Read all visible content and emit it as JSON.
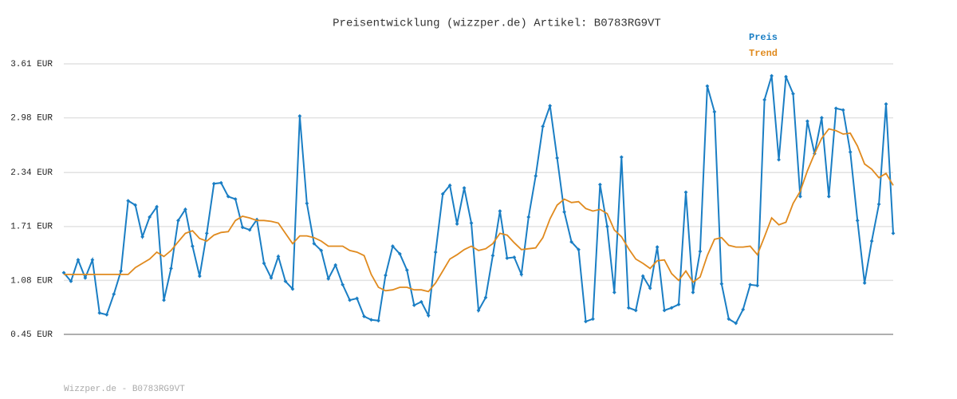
{
  "chart_data": {
    "type": "line",
    "title": "Preisentwicklung (wizzper.de) Artikel: B0783RG9VT",
    "footer": "Wizzper.de - B0783RG9VT",
    "ylim": [
      0.45,
      3.61
    ],
    "yticks": [
      {
        "value": 0.45,
        "label": "0.45 EUR"
      },
      {
        "value": 1.08,
        "label": "1.08 EUR"
      },
      {
        "value": 1.71,
        "label": "1.71 EUR"
      },
      {
        "value": 2.34,
        "label": "2.34 EUR"
      },
      {
        "value": 2.98,
        "label": "2.98 EUR"
      },
      {
        "value": 3.61,
        "label": "3.61 EUR"
      }
    ],
    "grid": true,
    "legend": "top-right",
    "series": [
      {
        "name": "Preis",
        "color": "#1a7ec4",
        "markers": true,
        "values": [
          1.17,
          1.07,
          1.32,
          1.11,
          1.32,
          0.7,
          0.68,
          0.92,
          1.19,
          2.01,
          1.96,
          1.59,
          1.82,
          1.94,
          0.85,
          1.22,
          1.78,
          1.91,
          1.48,
          1.13,
          1.63,
          2.21,
          2.22,
          2.06,
          2.03,
          1.7,
          1.67,
          1.79,
          1.28,
          1.11,
          1.36,
          1.07,
          0.98,
          3.0,
          1.98,
          1.51,
          1.43,
          1.1,
          1.26,
          1.03,
          0.85,
          0.87,
          0.66,
          0.62,
          0.61,
          1.14,
          1.48,
          1.39,
          1.2,
          0.79,
          0.83,
          0.67,
          1.41,
          2.09,
          2.19,
          1.74,
          2.16,
          1.75,
          0.73,
          0.88,
          1.37,
          1.89,
          1.34,
          1.35,
          1.15,
          1.82,
          2.3,
          2.88,
          3.12,
          2.51,
          1.88,
          1.53,
          1.44,
          0.6,
          0.63,
          2.2,
          1.71,
          0.94,
          2.52,
          0.76,
          0.73,
          1.13,
          0.99,
          1.47,
          0.73,
          0.76,
          0.8,
          2.11,
          0.94,
          1.42,
          3.35,
          3.05,
          1.04,
          0.63,
          0.58,
          0.74,
          1.03,
          1.02,
          3.19,
          3.47,
          2.49,
          3.46,
          3.26,
          2.06,
          2.94,
          2.56,
          2.98,
          2.06,
          3.09,
          3.07,
          2.58,
          1.78,
          1.05,
          1.54,
          1.97,
          3.14,
          1.63
        ]
      },
      {
        "name": "Trend",
        "color": "#e08a1e",
        "markers": false,
        "values": [
          1.15,
          1.15,
          1.15,
          1.15,
          1.15,
          1.15,
          1.15,
          1.15,
          1.15,
          1.15,
          1.23,
          1.28,
          1.33,
          1.41,
          1.36,
          1.43,
          1.53,
          1.63,
          1.66,
          1.57,
          1.54,
          1.61,
          1.64,
          1.65,
          1.78,
          1.83,
          1.81,
          1.78,
          1.78,
          1.77,
          1.75,
          1.63,
          1.51,
          1.6,
          1.6,
          1.58,
          1.54,
          1.48,
          1.48,
          1.48,
          1.43,
          1.41,
          1.37,
          1.15,
          1.0,
          0.96,
          0.97,
          1.0,
          1.0,
          0.97,
          0.97,
          0.95,
          1.05,
          1.19,
          1.33,
          1.38,
          1.44,
          1.48,
          1.43,
          1.45,
          1.51,
          1.63,
          1.61,
          1.52,
          1.44,
          1.45,
          1.46,
          1.58,
          1.8,
          1.96,
          2.03,
          1.99,
          2.0,
          1.92,
          1.89,
          1.91,
          1.86,
          1.67,
          1.59,
          1.45,
          1.33,
          1.28,
          1.22,
          1.31,
          1.32,
          1.16,
          1.08,
          1.19,
          1.06,
          1.12,
          1.37,
          1.56,
          1.58,
          1.49,
          1.47,
          1.47,
          1.48,
          1.38,
          1.59,
          1.81,
          1.73,
          1.76,
          1.98,
          2.12,
          2.36,
          2.56,
          2.74,
          2.85,
          2.83,
          2.79,
          2.8,
          2.65,
          2.44,
          2.38,
          2.28,
          2.33,
          2.19
        ]
      }
    ]
  }
}
